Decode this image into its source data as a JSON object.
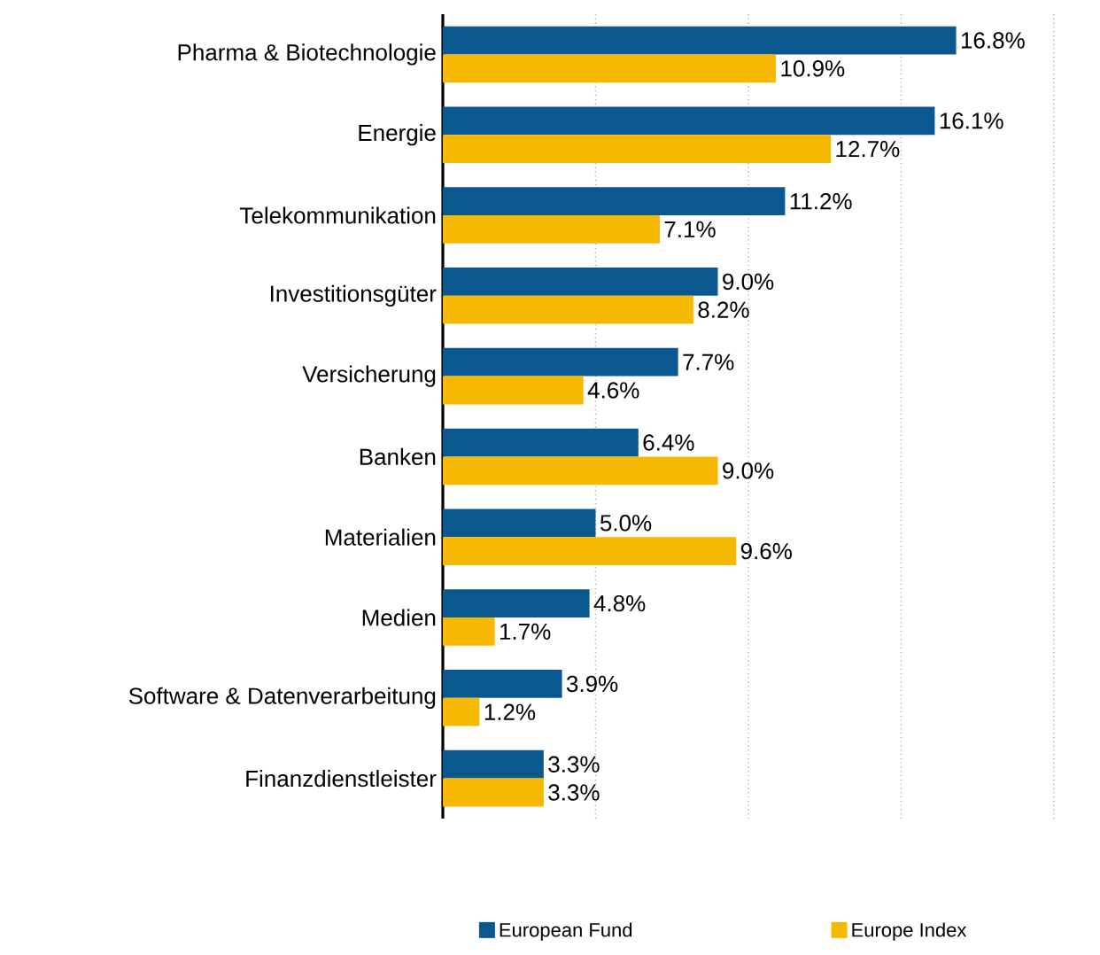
{
  "chart_data": {
    "type": "bar",
    "orientation": "horizontal",
    "categories": [
      "Pharma & Biotechnologie",
      "Energie",
      "Telekommunikation",
      "Investitionsgüter",
      "Versicherung",
      "Banken",
      "Materialien",
      "Medien",
      "Software & Datenverarbeitung",
      "Finanzdienstleister"
    ],
    "series": [
      {
        "name": "European Fund",
        "color": "#0b5790",
        "values": [
          16.8,
          16.1,
          11.2,
          9.0,
          7.7,
          6.4,
          5.0,
          4.8,
          3.9,
          3.3
        ],
        "value_labels": [
          "16.8%",
          "16.1%",
          "11.2%",
          "9.0%",
          "7.7%",
          "6.4%",
          "5.0%",
          "4.8%",
          "3.9%",
          "3.3%"
        ]
      },
      {
        "name": "Europe Index",
        "color": "#f6b800",
        "values": [
          10.9,
          12.7,
          7.1,
          8.2,
          4.6,
          9.0,
          9.6,
          1.7,
          1.2,
          3.3
        ],
        "value_labels": [
          "10.9%",
          "12.7%",
          "7.1%",
          "8.2%",
          "4.6%",
          "9.0%",
          "9.6%",
          "1.7%",
          "1.2%",
          "3.3%"
        ]
      }
    ],
    "xlim": [
      0,
      20
    ],
    "xticks": [
      {
        "value": 5,
        "label": null
      },
      {
        "value": 10,
        "label": null
      },
      {
        "value": 15,
        "label": null
      },
      {
        "value": 20,
        "label": null
      }
    ],
    "tick_labels": "y",
    "grid": "x",
    "legend": "bottom"
  }
}
